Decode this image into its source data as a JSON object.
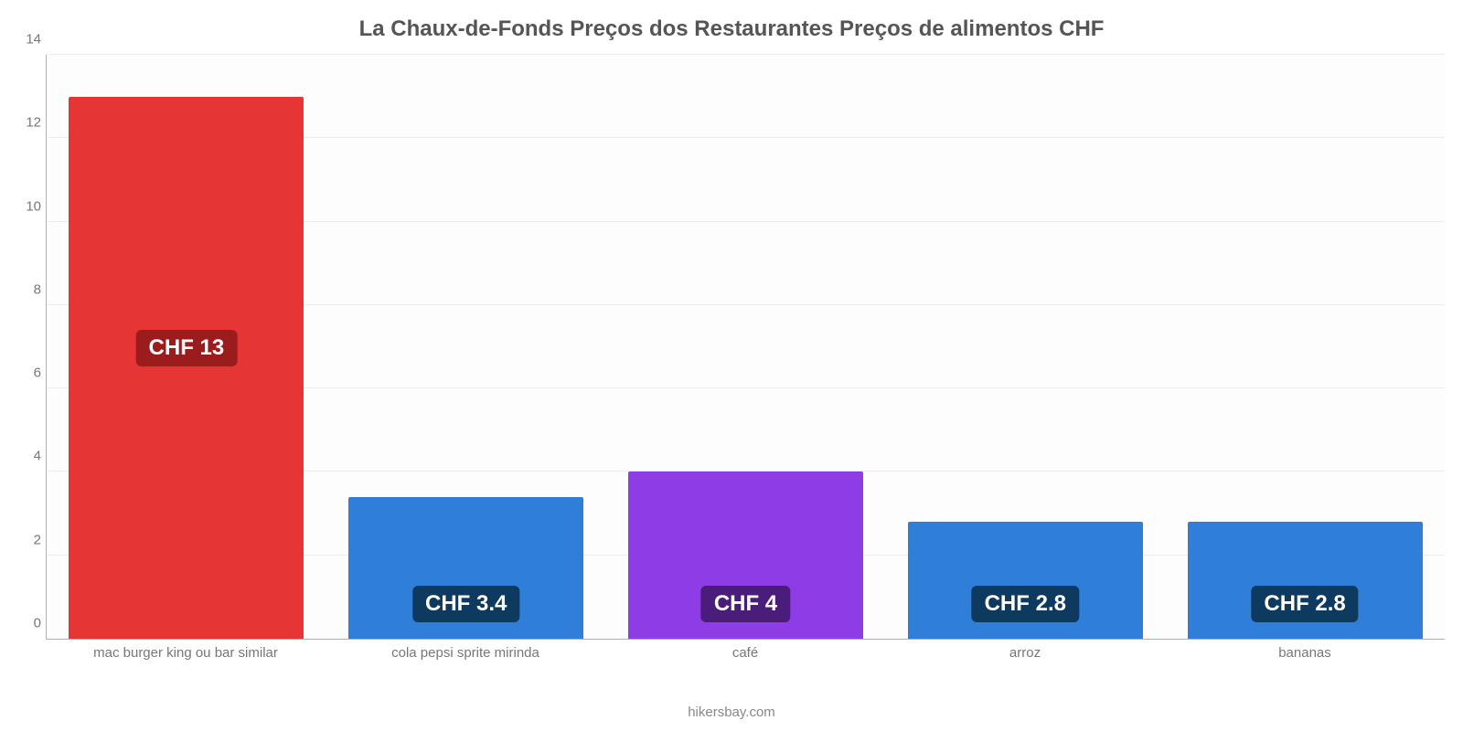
{
  "chart": {
    "type": "bar",
    "title": "La Chaux-de-Fonds Preços dos Restaurantes Preços de alimentos CHF",
    "title_fontsize": 24,
    "title_color": "#555555",
    "background_color": "#ffffff",
    "plot_background": "#fdfdfd",
    "grid_color": "#ececec",
    "axis_color": "#b0b0b0",
    "tick_font_color": "#777777",
    "tick_fontsize": 15,
    "ylim": [
      0,
      14
    ],
    "ytick_step": 2,
    "categories": [
      "mac burger king ou bar similar",
      "cola pepsi sprite mirinda",
      "café",
      "arroz",
      "bananas"
    ],
    "values": [
      13,
      3.4,
      4,
      2.8,
      2.8
    ],
    "value_labels": [
      "CHF 13",
      "CHF 3.4",
      "CHF 4",
      "CHF 2.8",
      "CHF 2.8"
    ],
    "bar_colors": [
      "#e63535",
      "#2f7ed8",
      "#8d3ce6",
      "#2f7ed8",
      "#2f7ed8"
    ],
    "label_bg_colors": [
      "#9b1c1c",
      "#0e3a60",
      "#4a1d7a",
      "#0e3a60",
      "#0e3a60"
    ],
    "label_text_color": "#ffffff",
    "label_fontsize": 24,
    "bar_width_pct": 84,
    "source": "hikersbay.com",
    "source_color": "#888888"
  }
}
